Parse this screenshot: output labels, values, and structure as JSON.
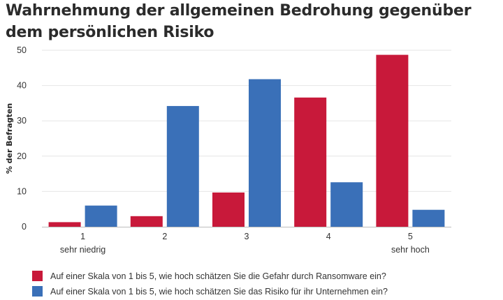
{
  "title": "Wahrnehmung der allgemeinen Bedrohung gegenüber dem persönlichen Risiko",
  "chart_data": {
    "type": "bar",
    "title": "Wahrnehmung der allgemeinen Bedrohung gegenüber dem persönlichen Risiko",
    "categories": [
      "1",
      "2",
      "3",
      "4",
      "5"
    ],
    "category_sublabels": [
      "sehr niedrig",
      "",
      "",
      "",
      "sehr hoch"
    ],
    "xlabel": "",
    "ylabel": "% der Befragten",
    "ylim": [
      0,
      50
    ],
    "yticks": [
      0,
      10,
      20,
      30,
      40,
      50
    ],
    "grid": true,
    "legend_position": "bottom",
    "series": [
      {
        "name": "Auf einer Skala von 1 bis 5, wie hoch schätzen Sie die Gefahr durch Ransomware ein?",
        "color": "#c8193a",
        "values": [
          1.3,
          3.0,
          9.7,
          36.6,
          48.7
        ]
      },
      {
        "name": "Auf einer Skala von 1 bis 5, wie hoch schätzen Sie das Risiko für ihr Unternehmen ein?",
        "color": "#3a70b8",
        "values": [
          6.0,
          34.2,
          41.8,
          12.6,
          4.8
        ]
      }
    ]
  }
}
